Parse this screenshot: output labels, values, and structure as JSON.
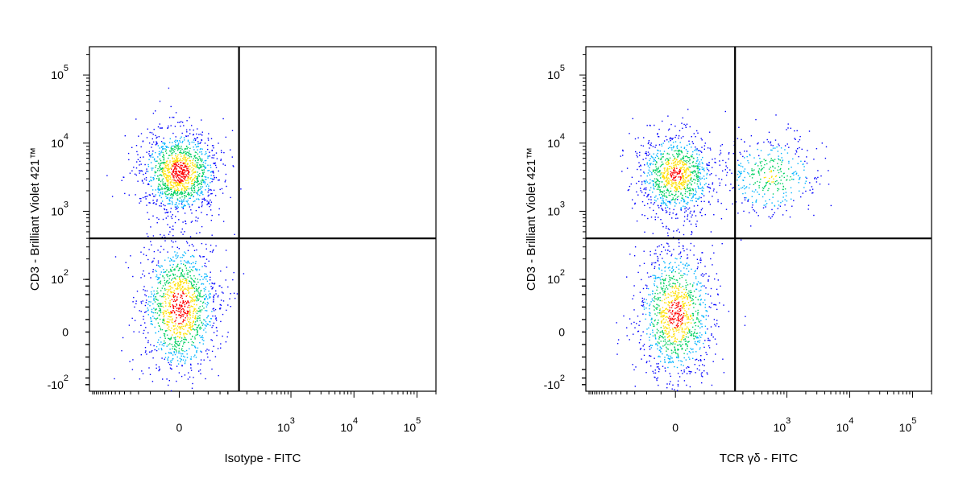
{
  "colors": {
    "axis": "#000000",
    "gate": "#000000",
    "density_low": "#0000ff",
    "density_mid_low": "#00b4ff",
    "density_mid": "#00d060",
    "density_mid_high": "#ffe000",
    "density_high": "#ff0000"
  },
  "chart_data": [
    {
      "type": "scatter",
      "title": "",
      "xlabel": "Isotype - FITC",
      "ylabel": "CD3 - Brilliant Violet 421™",
      "x_scale": "biexponential",
      "y_scale": "biexponential",
      "x_ticks": [
        {
          "value": 0,
          "base": "0",
          "exp": ""
        },
        {
          "value": 1000,
          "base": "10",
          "exp": "3"
        },
        {
          "value": 10000,
          "base": "10",
          "exp": "4"
        },
        {
          "value": 100000,
          "base": "10",
          "exp": "5"
        }
      ],
      "y_ticks": [
        {
          "value": -100,
          "base": "-10",
          "exp": "2"
        },
        {
          "value": 0,
          "base": "0",
          "exp": ""
        },
        {
          "value": 100,
          "base": "10",
          "exp": "2"
        },
        {
          "value": 1000,
          "base": "10",
          "exp": "3"
        },
        {
          "value": 10000,
          "base": "10",
          "exp": "4"
        },
        {
          "value": 100000,
          "base": "10",
          "exp": "5"
        }
      ],
      "gate": {
        "x": 150,
        "y": 400
      },
      "populations": [
        {
          "x_center": 0,
          "y_center": 3800,
          "relative_size": 0.5
        },
        {
          "x_center": 0,
          "y_center": 40,
          "relative_size": 0.5
        }
      ]
    },
    {
      "type": "scatter",
      "title": "",
      "xlabel": "TCR γδ - FITC",
      "ylabel": "CD3 - Brilliant Violet 421™",
      "x_scale": "biexponential",
      "y_scale": "biexponential",
      "x_ticks": [
        {
          "value": 0,
          "base": "0",
          "exp": ""
        },
        {
          "value": 1000,
          "base": "10",
          "exp": "3"
        },
        {
          "value": 10000,
          "base": "10",
          "exp": "4"
        },
        {
          "value": 100000,
          "base": "10",
          "exp": "5"
        }
      ],
      "y_ticks": [
        {
          "value": -100,
          "base": "-10",
          "exp": "2"
        },
        {
          "value": 0,
          "base": "0",
          "exp": ""
        },
        {
          "value": 100,
          "base": "10",
          "exp": "2"
        },
        {
          "value": 1000,
          "base": "10",
          "exp": "3"
        },
        {
          "value": 10000,
          "base": "10",
          "exp": "4"
        },
        {
          "value": 100000,
          "base": "10",
          "exp": "5"
        }
      ],
      "gate": {
        "x": 150,
        "y": 400
      },
      "populations": [
        {
          "x_center": 0,
          "y_center": 3500,
          "relative_size": 0.4
        },
        {
          "x_center": 550,
          "y_center": 3300,
          "relative_size": 0.15
        },
        {
          "x_center": 0,
          "y_center": 30,
          "relative_size": 0.45
        }
      ]
    }
  ]
}
